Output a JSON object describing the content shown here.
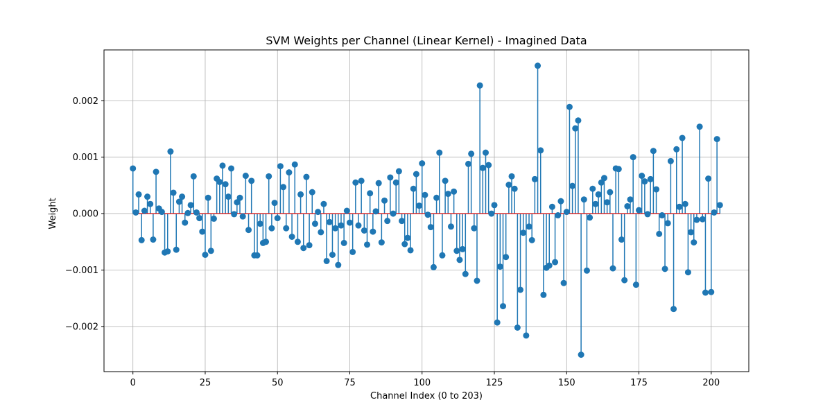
{
  "chart_data": {
    "type": "stem",
    "title": "SVM Weights per Channel (Linear Kernel) - Imagined Data",
    "xlabel": "Channel Index (0 to 203)",
    "ylabel": "Weight",
    "xlim": [
      -10,
      213
    ],
    "ylim": [
      -0.0028,
      0.0029
    ],
    "xticks": [
      0,
      25,
      50,
      75,
      100,
      125,
      150,
      175,
      200
    ],
    "xtick_labels": [
      "0",
      "25",
      "50",
      "75",
      "100",
      "125",
      "150",
      "175",
      "200"
    ],
    "yticks": [
      -0.002,
      -0.001,
      0.0,
      0.001,
      0.002
    ],
    "ytick_labels": [
      "−0.002",
      "−0.001",
      "0.000",
      "0.001",
      "0.002"
    ],
    "grid": true,
    "colors": {
      "stem": "#1f77b4",
      "baseline": "#d62728"
    },
    "x_start": 0,
    "values": [
      0.0008,
      2e-05,
      0.00034,
      -0.00047,
      5e-05,
      0.0003,
      0.00017,
      -0.00046,
      0.00074,
      9e-05,
      3e-05,
      -0.00069,
      -0.00067,
      0.0011,
      0.00037,
      -0.00064,
      0.00021,
      0.0003,
      -0.00016,
      1e-05,
      0.00015,
      0.00066,
      2e-05,
      -8e-05,
      -0.00032,
      -0.00073,
      0.00028,
      -0.00066,
      -9e-05,
      0.00062,
      0.00056,
      0.00085,
      0.00052,
      0.0003,
      0.0008,
      -1e-05,
      0.0002,
      0.00028,
      -5e-05,
      0.00067,
      -0.00029,
      0.00058,
      -0.00074,
      -0.00074,
      -0.00018,
      -0.00052,
      -0.0005,
      0.00066,
      -0.00026,
      0.00019,
      -8e-05,
      0.00084,
      0.00047,
      -0.00026,
      0.00073,
      -0.00041,
      0.00087,
      -0.0005,
      0.00034,
      -0.00061,
      0.00065,
      -0.00056,
      0.00038,
      -0.00018,
      3e-05,
      -0.00033,
      0.00017,
      -0.00084,
      -0.00015,
      -0.00073,
      -0.00026,
      -0.00091,
      -0.00021,
      -0.00052,
      5e-05,
      -0.00016,
      -0.00068,
      0.00055,
      -0.00021,
      0.00058,
      -0.0003,
      -0.00055,
      0.00036,
      -0.00032,
      4e-05,
      0.00054,
      -0.00051,
      0.00023,
      -0.00013,
      0.00064,
      0.0,
      0.00055,
      0.00075,
      -0.00013,
      -0.00054,
      -0.00043,
      -0.00065,
      0.00044,
      0.0007,
      0.00014,
      0.00089,
      0.00033,
      -2e-05,
      -0.00024,
      -0.00095,
      0.00028,
      0.00108,
      -0.00074,
      0.00058,
      0.00035,
      -0.00023,
      0.00039,
      -0.00066,
      -0.00082,
      -0.00063,
      -0.00107,
      0.00088,
      0.00106,
      -0.00026,
      -0.00119,
      0.00227,
      0.00081,
      0.00108,
      0.00086,
      0.0,
      0.00015,
      -0.00193,
      -0.00094,
      -0.00164,
      -0.00077,
      0.00051,
      0.00066,
      0.00044,
      -0.00202,
      -0.00135,
      -0.00034,
      -0.00216,
      -0.00023,
      -0.00047,
      0.00061,
      0.00262,
      0.00112,
      -0.00144,
      -0.00096,
      -0.00092,
      0.00012,
      -0.00086,
      -3e-05,
      0.00022,
      -0.00123,
      3e-05,
      0.00189,
      0.00049,
      0.00151,
      0.00165,
      -0.0025,
      0.00025,
      -0.00101,
      -7e-05,
      0.00044,
      0.00017,
      0.00034,
      0.00055,
      0.00063,
      0.0002,
      0.00038,
      -0.00097,
      0.0008,
      0.00079,
      -0.00046,
      -0.00118,
      0.00013,
      0.00025,
      0.001,
      -0.00126,
      6e-05,
      0.00067,
      0.00057,
      -1e-05,
      0.00061,
      0.00111,
      0.00043,
      -0.00036,
      -3e-05,
      -0.00098,
      -0.00017,
      0.00093,
      -0.00169,
      0.00114,
      0.00012,
      0.00134,
      0.00017,
      -0.00104,
      -0.00033,
      -0.00051,
      -0.00011,
      0.00154,
      -0.0001,
      -0.0014,
      0.00062,
      -0.00139,
      2e-05,
      0.00132,
      0.00015
    ]
  }
}
